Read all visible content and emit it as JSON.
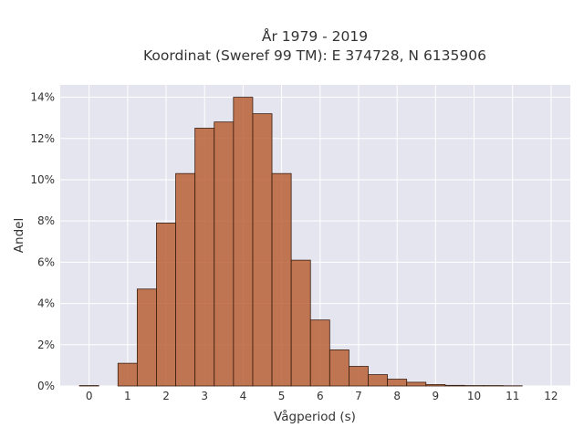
{
  "chart_data": {
    "type": "bar",
    "title": "År 1979 - 2019",
    "subtitle": "Koordinat (Sweref 99 TM): E 374728, N 6135906",
    "xlabel": "Vågperiod (s)",
    "ylabel": "Andel",
    "bin_width": 0.5,
    "xlim": [
      -0.75,
      12.5
    ],
    "ylim": [
      0,
      14.6
    ],
    "x_ticks": [
      0,
      1,
      2,
      3,
      4,
      5,
      6,
      7,
      8,
      9,
      10,
      11,
      12
    ],
    "x_tick_labels": [
      "0",
      "1",
      "2",
      "3",
      "4",
      "5",
      "6",
      "7",
      "8",
      "9",
      "10",
      "11",
      "12"
    ],
    "y_ticks": [
      0,
      2,
      4,
      6,
      8,
      10,
      12,
      14
    ],
    "y_tick_labels": [
      "0%",
      "2%",
      "4%",
      "6%",
      "8%",
      "10%",
      "12%",
      "14%"
    ],
    "bins": [
      {
        "x": 0.0,
        "value": 0.02
      },
      {
        "x": 0.5,
        "value": 0
      },
      {
        "x": 1.0,
        "value": 1.1
      },
      {
        "x": 1.5,
        "value": 4.7
      },
      {
        "x": 2.0,
        "value": 7.9
      },
      {
        "x": 2.5,
        "value": 10.3
      },
      {
        "x": 3.0,
        "value": 12.5
      },
      {
        "x": 3.5,
        "value": 12.8
      },
      {
        "x": 4.0,
        "value": 14.0
      },
      {
        "x": 4.5,
        "value": 13.2
      },
      {
        "x": 5.0,
        "value": 10.3
      },
      {
        "x": 5.5,
        "value": 6.1
      },
      {
        "x": 6.0,
        "value": 3.2
      },
      {
        "x": 6.5,
        "value": 1.75
      },
      {
        "x": 7.0,
        "value": 0.95
      },
      {
        "x": 7.5,
        "value": 0.55
      },
      {
        "x": 8.0,
        "value": 0.33
      },
      {
        "x": 8.5,
        "value": 0.18
      },
      {
        "x": 9.0,
        "value": 0.07
      },
      {
        "x": 9.5,
        "value": 0.03
      },
      {
        "x": 10.0,
        "value": 0.02
      },
      {
        "x": 10.5,
        "value": 0.02
      },
      {
        "x": 11.0,
        "value": 0.01
      },
      {
        "x": 11.5,
        "value": 0
      },
      {
        "x": 12.0,
        "value": 0
      }
    ],
    "grid": true,
    "colors": {
      "bar_fill": "#b5582a",
      "bar_stroke": "#3a1e0e",
      "plot_bg": "#e5e5ef",
      "grid": "#ffffff"
    }
  }
}
